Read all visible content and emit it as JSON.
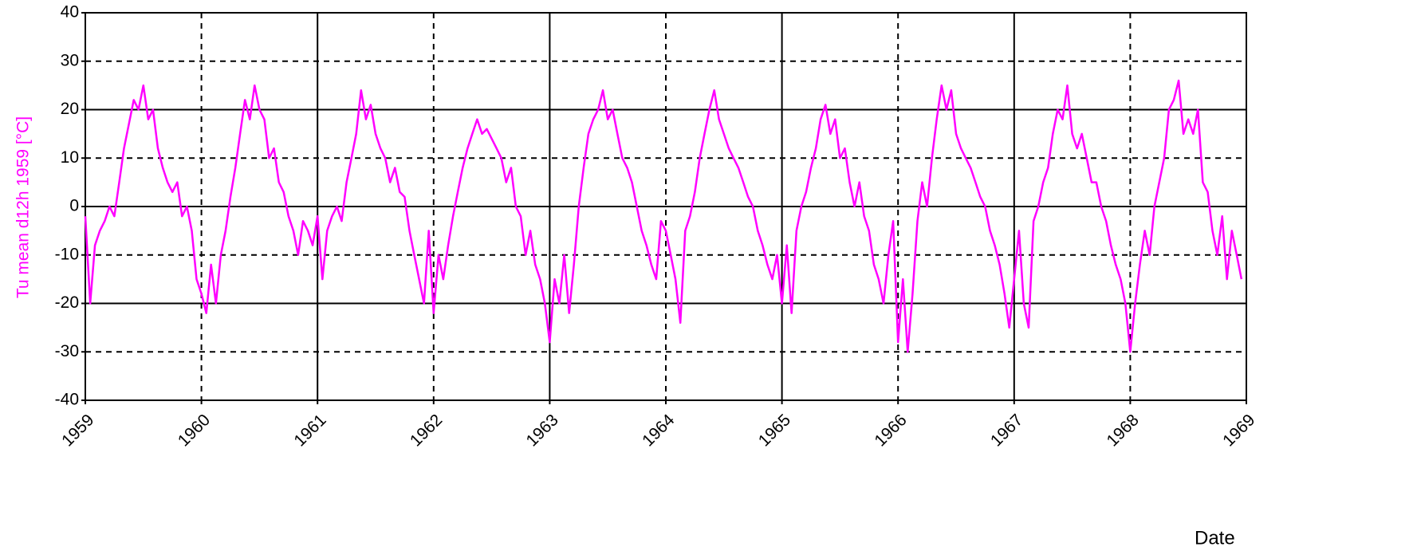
{
  "chart_data": {
    "type": "line",
    "y_label": "Tu mean d12h 1959 [°C]",
    "x_label": "Date",
    "xlim": [
      1959,
      1969
    ],
    "xticks": [
      1959,
      1960,
      1961,
      1962,
      1963,
      1964,
      1965,
      1966,
      1967,
      1968,
      1969
    ],
    "ylim": [
      -40,
      40
    ],
    "yticks": [
      -40,
      -30,
      -20,
      -10,
      0,
      10,
      20,
      30,
      40
    ],
    "grid": true,
    "series": [
      {
        "color": "#ff00ff",
        "x": [
          1959,
          1959.042,
          1959.083,
          1959.125,
          1959.167,
          1959.208,
          1959.25,
          1959.292,
          1959.333,
          1959.375,
          1959.417,
          1959.458,
          1959.5,
          1959.542,
          1959.583,
          1959.625,
          1959.667,
          1959.708,
          1959.75,
          1959.792,
          1959.833,
          1959.875,
          1959.917,
          1959.958,
          1960,
          1960.042,
          1960.083,
          1960.125,
          1960.167,
          1960.208,
          1960.25,
          1960.292,
          1960.333,
          1960.375,
          1960.417,
          1960.458,
          1960.5,
          1960.542,
          1960.583,
          1960.625,
          1960.667,
          1960.708,
          1960.75,
          1960.792,
          1960.833,
          1960.875,
          1960.917,
          1960.958,
          1961,
          1961.042,
          1961.083,
          1961.125,
          1961.167,
          1961.208,
          1961.25,
          1961.292,
          1961.333,
          1961.375,
          1961.417,
          1961.458,
          1961.5,
          1961.542,
          1961.583,
          1961.625,
          1961.667,
          1961.708,
          1961.75,
          1961.792,
          1961.833,
          1961.875,
          1961.917,
          1961.958,
          1962,
          1962.042,
          1962.083,
          1962.125,
          1962.167,
          1962.208,
          1962.25,
          1962.292,
          1962.333,
          1962.375,
          1962.417,
          1962.458,
          1962.5,
          1962.542,
          1962.583,
          1962.625,
          1962.667,
          1962.708,
          1962.75,
          1962.792,
          1962.833,
          1962.875,
          1962.917,
          1962.958,
          1963,
          1963.042,
          1963.083,
          1963.125,
          1963.167,
          1963.208,
          1963.25,
          1963.292,
          1963.333,
          1963.375,
          1963.417,
          1963.458,
          1963.5,
          1963.542,
          1963.583,
          1963.625,
          1963.667,
          1963.708,
          1963.75,
          1963.792,
          1963.833,
          1963.875,
          1963.917,
          1963.958,
          1964,
          1964.042,
          1964.083,
          1964.125,
          1964.167,
          1964.208,
          1964.25,
          1964.292,
          1964.333,
          1964.375,
          1964.417,
          1964.458,
          1964.5,
          1964.542,
          1964.583,
          1964.625,
          1964.667,
          1964.708,
          1964.75,
          1964.792,
          1964.833,
          1964.875,
          1964.917,
          1964.958,
          1965,
          1965.042,
          1965.083,
          1965.125,
          1965.167,
          1965.208,
          1965.25,
          1965.292,
          1965.333,
          1965.375,
          1965.417,
          1965.458,
          1965.5,
          1965.542,
          1965.583,
          1965.625,
          1965.667,
          1965.708,
          1965.75,
          1965.792,
          1965.833,
          1965.875,
          1965.917,
          1965.958,
          1966,
          1966.042,
          1966.083,
          1966.125,
          1966.167,
          1966.208,
          1966.25,
          1966.292,
          1966.333,
          1966.375,
          1966.417,
          1966.458,
          1966.5,
          1966.542,
          1966.583,
          1966.625,
          1966.667,
          1966.708,
          1966.75,
          1966.792,
          1966.833,
          1966.875,
          1966.917,
          1966.958,
          1967,
          1967.042,
          1967.083,
          1967.125,
          1967.167,
          1967.208,
          1967.25,
          1967.292,
          1967.333,
          1967.375,
          1967.417,
          1967.458,
          1967.5,
          1967.542,
          1967.583,
          1967.625,
          1967.667,
          1967.708,
          1967.75,
          1967.792,
          1967.833,
          1967.875,
          1967.917,
          1967.958,
          1968,
          1968.042,
          1968.083,
          1968.125,
          1968.167,
          1968.208,
          1968.25,
          1968.292,
          1968.333,
          1968.375,
          1968.417,
          1968.458,
          1968.5,
          1968.542,
          1968.583,
          1968.625,
          1968.667,
          1968.708,
          1968.75,
          1968.792,
          1968.833,
          1968.875,
          1968.917,
          1968.958
        ],
        "values": [
          -2,
          -20,
          -8,
          -5,
          -3,
          0,
          -2,
          5,
          12,
          17,
          22,
          20,
          25,
          18,
          20,
          12,
          8,
          5,
          3,
          5,
          -2,
          0,
          -5,
          -15,
          -18,
          -22,
          -12,
          -20,
          -10,
          -5,
          2,
          8,
          15,
          22,
          18,
          25,
          20,
          18,
          10,
          12,
          5,
          3,
          -2,
          -5,
          -10,
          -3,
          -5,
          -8,
          -2,
          -15,
          -5,
          -2,
          0,
          -3,
          5,
          10,
          15,
          24,
          18,
          21,
          15,
          12,
          10,
          5,
          8,
          3,
          2,
          -5,
          -10,
          -15,
          -20,
          -5,
          -22,
          -10,
          -15,
          -8,
          -2,
          3,
          8,
          12,
          15,
          18,
          15,
          16,
          14,
          12,
          10,
          5,
          8,
          0,
          -2,
          -10,
          -5,
          -12,
          -15,
          -20,
          -28,
          -15,
          -20,
          -10,
          -22,
          -12,
          0,
          8,
          15,
          18,
          20,
          24,
          18,
          20,
          15,
          10,
          8,
          5,
          0,
          -5,
          -8,
          -12,
          -15,
          -3,
          -5,
          -10,
          -15,
          -24,
          -5,
          -2,
          3,
          10,
          15,
          20,
          24,
          18,
          15,
          12,
          10,
          8,
          5,
          2,
          0,
          -5,
          -8,
          -12,
          -15,
          -10,
          -20,
          -8,
          -22,
          -5,
          0,
          3,
          8,
          12,
          18,
          21,
          15,
          18,
          10,
          12,
          5,
          0,
          5,
          -2,
          -5,
          -12,
          -15,
          -20,
          -10,
          -3,
          -28,
          -15,
          -30,
          -18,
          -3,
          5,
          0,
          10,
          18,
          25,
          20,
          24,
          15,
          12,
          10,
          8,
          5,
          2,
          0,
          -5,
          -8,
          -12,
          -18,
          -25,
          -15,
          -5,
          -20,
          -25,
          -3,
          0,
          5,
          8,
          15,
          20,
          18,
          25,
          15,
          12,
          15,
          10,
          5,
          5,
          0,
          -3,
          -8,
          -12,
          -15,
          -20,
          -30,
          -20,
          -12,
          -5,
          -10,
          0,
          5,
          10,
          20,
          22,
          26,
          15,
          18,
          15,
          20,
          5,
          3,
          -5,
          -10,
          -2,
          -15,
          -5,
          -10,
          -15
        ]
      }
    ]
  }
}
